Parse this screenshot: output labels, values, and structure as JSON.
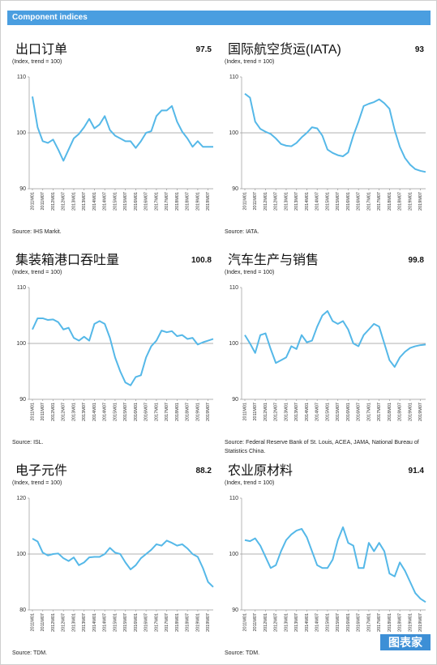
{
  "header": "Component indices",
  "watermark": "图表家",
  "chart_data": [
    {
      "type": "line",
      "title": "出口订单",
      "latest": 97.5,
      "subtitle": "(Index, trend = 100)",
      "source": "Source:  IHS Markit.",
      "color": "#55b8e8",
      "ylim": [
        90,
        110
      ],
      "yticks": [
        90,
        100,
        110
      ],
      "refline": 100,
      "categories": [
        "2011M01",
        null,
        "2011M07",
        null,
        "2012M01",
        null,
        "2012M07",
        null,
        "2013M01",
        null,
        "2013M07",
        null,
        "2014M01",
        null,
        "2014M07",
        null,
        "2015M01",
        null,
        "2015M07",
        null,
        "2016M01",
        null,
        "2016M07",
        null,
        "2017M01",
        null,
        "2017M07",
        null,
        "2018M01",
        null,
        "2018M07",
        null,
        "2019M01",
        null,
        "2019M07",
        null
      ],
      "values": [
        106.5,
        101,
        98.5,
        98.2,
        98.8,
        97,
        95,
        97,
        99,
        99.8,
        101,
        102.5,
        100.8,
        101.5,
        103,
        100.5,
        99.5,
        99,
        98.5,
        98.5,
        97.3,
        98.5,
        100,
        100.3,
        103,
        104,
        104,
        104.8,
        102,
        100.2,
        99,
        97.5,
        98.5,
        97.5,
        97.5,
        97.5
      ]
    },
    {
      "type": "line",
      "title": "国际航空货运(IATA)",
      "latest": 93.0,
      "subtitle": "(Index, trend = 100)",
      "source": "Source:  IATA.",
      "color": "#55b8e8",
      "ylim": [
        90,
        110
      ],
      "yticks": [
        90,
        100,
        110
      ],
      "refline": 100,
      "categories": [
        "2011M01",
        null,
        "2011M07",
        null,
        "2012M01",
        null,
        "2012M07",
        null,
        "2013M01",
        null,
        "2013M07",
        null,
        "2014M01",
        null,
        "2014M07",
        null,
        "2015M01",
        null,
        "2015M07",
        null,
        "2016M01",
        null,
        "2016M07",
        null,
        "2017M01",
        null,
        "2017M07",
        null,
        "2018M01",
        null,
        "2018M07",
        null,
        "2019M01",
        null,
        "2019M07",
        null
      ],
      "values": [
        107,
        106.3,
        102,
        100.7,
        100.2,
        99.8,
        99,
        98,
        97.7,
        97.6,
        98.2,
        99.2,
        100,
        101,
        100.8,
        99.5,
        97,
        96.4,
        96,
        95.8,
        96.5,
        99.5,
        102,
        104.8,
        105.2,
        105.5,
        106,
        105.3,
        104.3,
        100.5,
        97.5,
        95.5,
        94.3,
        93.5,
        93.2,
        93
      ]
    },
    {
      "type": "line",
      "title": "集装箱港口吞吐量",
      "latest": 100.8,
      "subtitle": "(Index, trend = 100)",
      "source": "Source:  ISL.",
      "color": "#55b8e8",
      "ylim": [
        90,
        110
      ],
      "yticks": [
        90,
        100,
        110
      ],
      "refline": 100,
      "categories": [
        "2011M01",
        null,
        "2011M07",
        null,
        "2012M01",
        null,
        "2012M07",
        null,
        "2013M01",
        null,
        "2013M07",
        null,
        "2014M01",
        null,
        "2014M07",
        null,
        "2015M01",
        null,
        "2015M07",
        null,
        "2016M01",
        null,
        "2016M07",
        null,
        "2017M01",
        null,
        "2017M07",
        null,
        "2018M01",
        null,
        "2018M07",
        null,
        "2019M01",
        null,
        "2019M07",
        null
      ],
      "values": [
        102.5,
        104.5,
        104.5,
        104.2,
        104.3,
        103.8,
        102.5,
        102.8,
        101,
        100.5,
        101.2,
        100.5,
        103.5,
        104,
        103.5,
        101,
        97.5,
        95,
        93,
        92.5,
        94,
        94.3,
        97.5,
        99.5,
        100.5,
        102.3,
        102,
        102.2,
        101.3,
        101.5,
        100.8,
        101,
        99.8,
        100.2,
        100.5,
        100.8
      ]
    },
    {
      "type": "line",
      "title": "汽车生产与销售",
      "latest": 99.8,
      "subtitle": "(Index, trend = 100)",
      "source": "Source:  Federal Reserve Bank of St. Louis, ACEA, JAMA, National Bureau of Statistics China.",
      "color": "#55b8e8",
      "ylim": [
        90,
        110
      ],
      "yticks": [
        90,
        100,
        110
      ],
      "refline": 100,
      "categories": [
        "2011M01",
        null,
        "2011M07",
        null,
        "2012M01",
        null,
        "2012M07",
        null,
        "2013M01",
        null,
        "2013M07",
        null,
        "2014M01",
        null,
        "2014M07",
        null,
        "2015M01",
        null,
        "2015M07",
        null,
        "2016M01",
        null,
        "2016M07",
        null,
        "2017M01",
        null,
        "2017M07",
        null,
        "2018M01",
        null,
        "2018M07",
        null,
        "2019M01",
        null,
        "2019M07",
        null
      ],
      "values": [
        101.5,
        100,
        98.3,
        101.5,
        101.8,
        99,
        96.5,
        97,
        97.5,
        99.5,
        99,
        101.5,
        100.2,
        100.5,
        103,
        105,
        105.8,
        104,
        103.5,
        104,
        102.5,
        100,
        99.5,
        101.5,
        102.5,
        103.5,
        103,
        100,
        97,
        95.8,
        97.5,
        98.5,
        99.2,
        99.5,
        99.7,
        99.8
      ]
    },
    {
      "type": "line",
      "title": "电子元件",
      "latest": 88.2,
      "subtitle": "(Index, trend = 100)",
      "source": "Source:  TDM.",
      "color": "#55b8e8",
      "ylim": [
        80,
        120
      ],
      "yticks": [
        80,
        100,
        120
      ],
      "refline": 100,
      "categories": [
        "2011M01",
        null,
        "2011M07",
        null,
        "2012M01",
        null,
        "2012M07",
        null,
        "2013M01",
        null,
        "2013M07",
        null,
        "2014M01",
        null,
        "2014M07",
        null,
        "2015M01",
        null,
        "2015M07",
        null,
        "2016M01",
        null,
        "2016M07",
        null,
        "2017M01",
        null,
        "2017M07",
        null,
        "2018M01",
        null,
        "2018M07",
        null,
        "2019M01",
        null,
        "2019M07",
        null
      ],
      "values": [
        105.5,
        104.5,
        100.5,
        99.5,
        100,
        100.2,
        98.5,
        97.5,
        98.8,
        96,
        97,
        98.8,
        99,
        99,
        100,
        102.2,
        100.5,
        100,
        97,
        94.5,
        96,
        98.5,
        100,
        101.5,
        103.5,
        103,
        104.8,
        104,
        103,
        103.5,
        102,
        100,
        99,
        95,
        90,
        88.2
      ]
    },
    {
      "type": "line",
      "title": "农业原材料",
      "latest": 91.4,
      "subtitle": "(Index, trend = 100)",
      "source": "Source:  TDM.",
      "color": "#55b8e8",
      "ylim": [
        90,
        110
      ],
      "yticks": [
        90,
        100,
        110
      ],
      "refline": 100,
      "categories": [
        "2011M01",
        null,
        "2011M07",
        null,
        "2012M01",
        null,
        "2012M07",
        null,
        "2013M01",
        null,
        "2013M07",
        null,
        "2014M01",
        null,
        "2014M07",
        null,
        "2015M01",
        null,
        "2015M07",
        null,
        "2016M01",
        null,
        "2016M07",
        null,
        "2017M01",
        null,
        "2017M07",
        null,
        "2018M01",
        null,
        "2018M07",
        null,
        "2019M01",
        null,
        "2019M07",
        null
      ],
      "values": [
        102.5,
        102.3,
        102.8,
        101.5,
        99.5,
        97.5,
        98,
        100.5,
        102.5,
        103.5,
        104.2,
        104.5,
        103,
        100.5,
        98,
        97.5,
        97.5,
        99,
        102.5,
        104.8,
        102,
        101.5,
        97.5,
        97.5,
        102,
        100.5,
        102,
        100.5,
        96.5,
        96,
        98.5,
        97,
        95,
        93,
        92,
        91.4
      ]
    }
  ]
}
